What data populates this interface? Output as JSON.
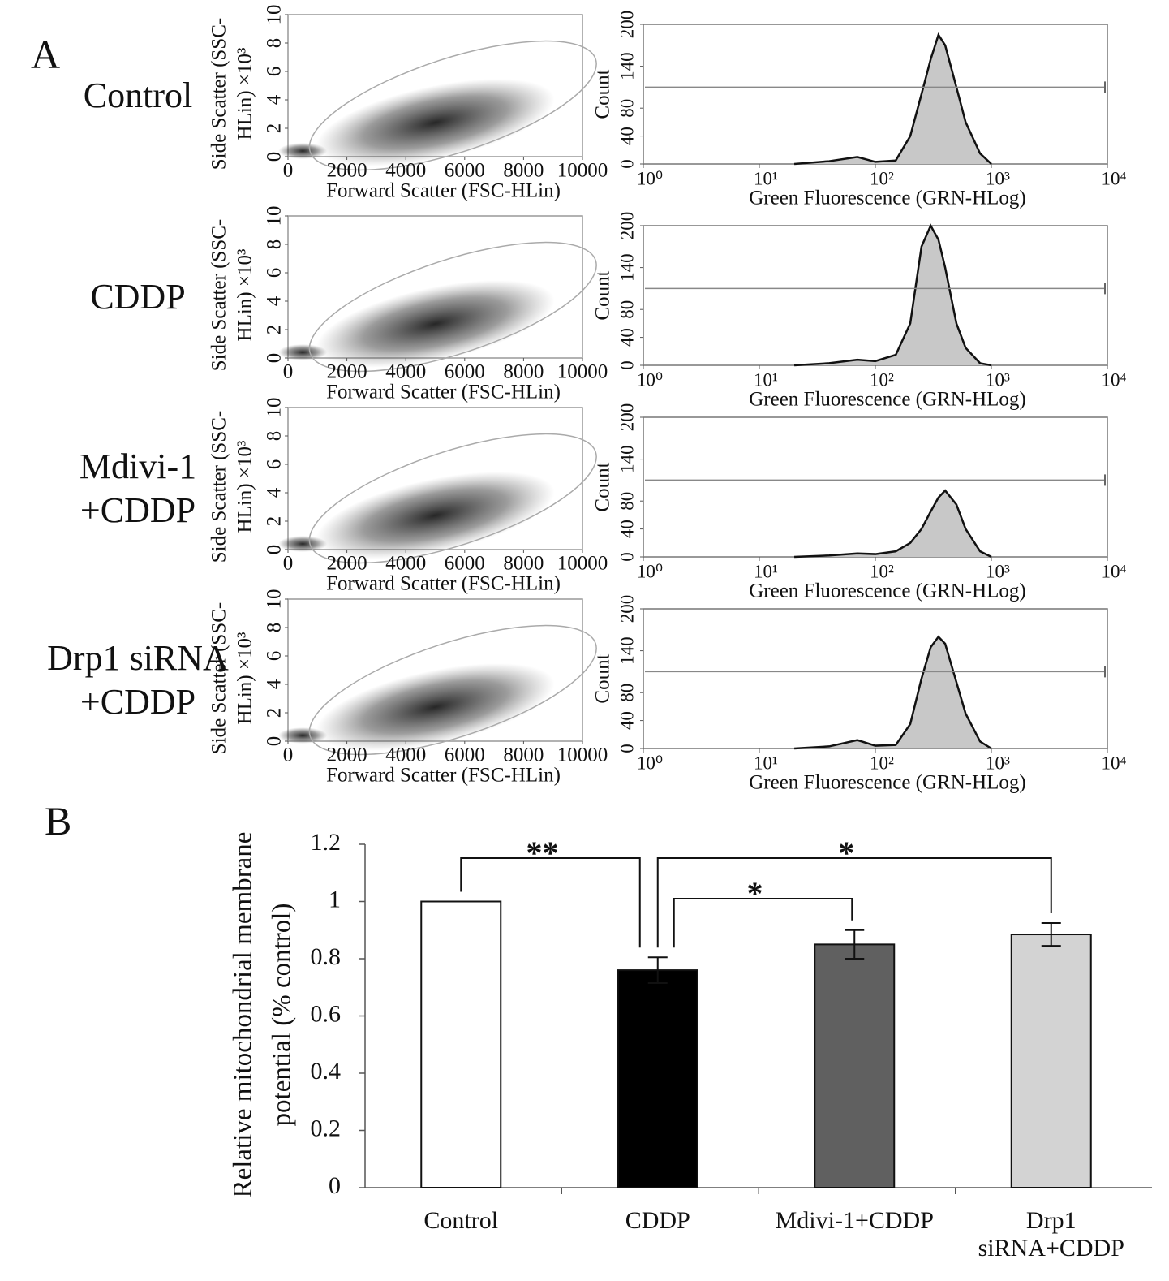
{
  "panel_labels": [
    "A",
    "B"
  ],
  "chart_data": [
    {
      "type": "scatter",
      "title": "Control",
      "xlabel": "Forward Scatter (FSC-HLin)",
      "ylabel": [
        "Side Scatter (SSC-",
        "HLin) ×10³"
      ],
      "xlim": [
        0,
        10000
      ],
      "xticks": [
        0,
        2000,
        4000,
        6000,
        8000,
        10000
      ],
      "ylim": [
        0,
        10
      ],
      "yticks": [
        0,
        2,
        4,
        6,
        8,
        10
      ]
    },
    {
      "type": "area",
      "xlabel": "Green Fluorescence (GRN-HLog)",
      "ylabel": "Count",
      "log_x": true,
      "color": "#c8c8c8",
      "xlim": [
        1,
        10000
      ],
      "xticks": [
        {
          "value": 1,
          "label": "10⁰"
        },
        {
          "value": 10,
          "label": "10¹"
        },
        {
          "value": 100,
          "label": "10²"
        },
        {
          "value": 1000,
          "label": "10³"
        },
        {
          "value": 10000,
          "label": "10⁴"
        }
      ],
      "ylim": [
        0,
        200
      ],
      "yticks": [
        0,
        40,
        80,
        140,
        200
      ],
      "x": [
        20,
        40,
        70,
        100,
        150,
        200,
        250,
        300,
        350,
        400,
        500,
        600,
        800,
        1000
      ],
      "values": [
        0,
        4,
        10,
        3,
        5,
        40,
        100,
        150,
        185,
        170,
        110,
        60,
        15,
        0
      ]
    },
    {
      "type": "scatter",
      "title": "CDDP",
      "xlabel": "Forward Scatter (FSC-HLin)",
      "ylabel": [
        "Side Scatter (SSC-",
        "HLin) ×10³"
      ],
      "xlim": [
        0,
        10000
      ],
      "xticks": [
        0,
        2000,
        4000,
        6000,
        8000,
        10000
      ],
      "ylim": [
        0,
        10
      ],
      "yticks": [
        0,
        2,
        4,
        6,
        8,
        10
      ]
    },
    {
      "type": "area",
      "xlabel": "Green Fluorescence (GRN-HLog)",
      "ylabel": "Count",
      "log_x": true,
      "color": "#c8c8c8",
      "xlim": [
        1,
        10000
      ],
      "xticks": [
        {
          "value": 1,
          "label": "10⁰"
        },
        {
          "value": 10,
          "label": "10¹"
        },
        {
          "value": 100,
          "label": "10²"
        },
        {
          "value": 1000,
          "label": "10³"
        },
        {
          "value": 10000,
          "label": "10⁴"
        }
      ],
      "ylim": [
        0,
        200
      ],
      "yticks": [
        0,
        40,
        80,
        140,
        200
      ],
      "x": [
        20,
        40,
        70,
        100,
        150,
        200,
        250,
        300,
        350,
        400,
        500,
        600,
        800,
        1000
      ],
      "values": [
        0,
        3,
        8,
        6,
        15,
        60,
        170,
        200,
        180,
        140,
        60,
        25,
        3,
        0
      ]
    },
    {
      "type": "scatter",
      "title": "Mdivi-1\n+CDDP",
      "xlabel": "Forward Scatter (FSC-HLin)",
      "ylabel": [
        "Side Scatter (SSC-",
        "HLin) ×10³"
      ],
      "xlim": [
        0,
        10000
      ],
      "xticks": [
        0,
        2000,
        4000,
        6000,
        8000,
        10000
      ],
      "ylim": [
        0,
        10
      ],
      "yticks": [
        0,
        2,
        4,
        6,
        8,
        10
      ]
    },
    {
      "type": "area",
      "xlabel": "Green Fluorescence (GRN-HLog)",
      "ylabel": "Count",
      "log_x": true,
      "color": "#c8c8c8",
      "xlim": [
        1,
        10000
      ],
      "xticks": [
        {
          "value": 1,
          "label": "10⁰"
        },
        {
          "value": 10,
          "label": "10¹"
        },
        {
          "value": 100,
          "label": "10²"
        },
        {
          "value": 1000,
          "label": "10³"
        },
        {
          "value": 10000,
          "label": "10⁴"
        }
      ],
      "ylim": [
        0,
        200
      ],
      "yticks": [
        0,
        40,
        80,
        140,
        200
      ],
      "x": [
        20,
        40,
        70,
        100,
        150,
        200,
        250,
        300,
        350,
        400,
        500,
        600,
        800,
        1000
      ],
      "values": [
        0,
        2,
        5,
        4,
        8,
        20,
        40,
        65,
        85,
        95,
        75,
        40,
        8,
        0
      ]
    },
    {
      "type": "scatter",
      "title": "Drp1 siRNA\n+CDDP",
      "xlabel": "Forward Scatter (FSC-HLin)",
      "ylabel": [
        "Side Scatter (SSC-",
        "HLin) ×10³"
      ],
      "xlim": [
        0,
        10000
      ],
      "xticks": [
        0,
        2000,
        4000,
        6000,
        8000,
        10000
      ],
      "ylim": [
        0,
        10
      ],
      "yticks": [
        0,
        2,
        4,
        6,
        8,
        10
      ]
    },
    {
      "type": "area",
      "xlabel": "Green Fluorescence (GRN-HLog)",
      "ylabel": "Count",
      "log_x": true,
      "color": "#c8c8c8",
      "xlim": [
        1,
        10000
      ],
      "xticks": [
        {
          "value": 1,
          "label": "10⁰"
        },
        {
          "value": 10,
          "label": "10¹"
        },
        {
          "value": 100,
          "label": "10²"
        },
        {
          "value": 1000,
          "label": "10³"
        },
        {
          "value": 10000,
          "label": "10⁴"
        }
      ],
      "ylim": [
        0,
        200
      ],
      "yticks": [
        0,
        40,
        80,
        140,
        200
      ],
      "x": [
        20,
        40,
        70,
        100,
        150,
        200,
        250,
        300,
        350,
        400,
        500,
        600,
        800,
        1000
      ],
      "values": [
        0,
        3,
        12,
        4,
        5,
        35,
        100,
        145,
        160,
        150,
        95,
        50,
        10,
        0
      ]
    },
    {
      "type": "bar",
      "ylabel": [
        "Relative mitochondrial membrane",
        "potential (% control)"
      ],
      "categories": [
        "Control",
        "CDDP",
        "Mdivi-1+CDDP",
        "Drp1 siRNA+CDDP"
      ],
      "values": [
        1,
        0.76,
        0.85,
        0.885
      ],
      "errors": [
        null,
        0.045,
        0.05,
        0.04
      ],
      "colors": [
        "#ffffff",
        "#000000",
        "#606060",
        "#d3d3d3"
      ],
      "ylim": [
        0,
        1.2
      ],
      "yticks": [
        0,
        0.2,
        0.4,
        0.6,
        0.8,
        1,
        1.2
      ],
      "annotations": [
        {
          "from": 0,
          "to": 1,
          "label": "**"
        },
        {
          "from": 1,
          "to": 2,
          "label": "*"
        },
        {
          "from": 1,
          "to": 3,
          "label": "*"
        }
      ]
    }
  ]
}
